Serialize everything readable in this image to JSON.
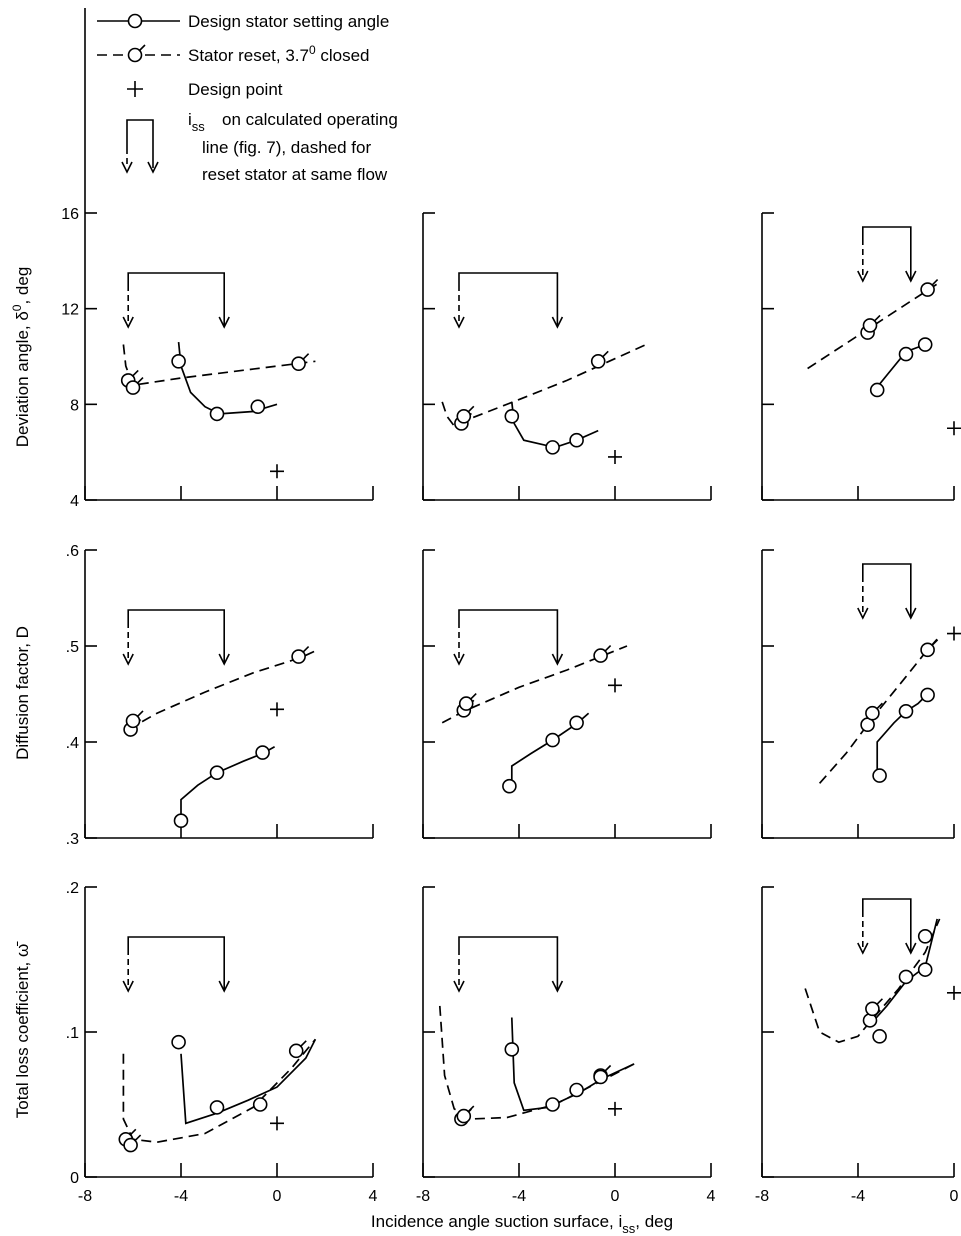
{
  "legend": {
    "design": "Design stator setting angle",
    "reset_main": "Stator reset, 3.7",
    "reset_sup": "0",
    "reset_tail": " closed",
    "design_point": "Design point",
    "iss_symbol": "i",
    "iss_sub": "ss",
    "iss_line1": "on calculated operating",
    "iss_line2": "line (fig. 7), dashed for",
    "iss_line3": "reset stator at same flow"
  },
  "labels": {
    "ylabel_dev_main": "Deviation angle, δ",
    "ylabel_dev_sup": "0",
    "ylabel_dev_tail": ", deg",
    "ylabel_diff": "Diffusion factor, D",
    "ylabel_loss": "Total loss coefficient, ω̄",
    "xlabel_main": "Incidence angle suction surface, i",
    "xlabel_sub": "ss",
    "xlabel_tail": ", deg"
  },
  "chart_data": {
    "type": "line",
    "styles": {
      "design": "solid line, open circles",
      "reset": "dashed line, flagged circles",
      "design_point": "plus marker"
    },
    "rows": [
      {
        "quantity": "Deviation angle",
        "ylim": [
          4,
          16
        ],
        "yticks": [
          "4",
          "8",
          "12",
          "16"
        ]
      },
      {
        "quantity": "Diffusion factor",
        "ylim": [
          0.3,
          0.6
        ],
        "yticks": [
          ".3",
          ".4",
          ".5",
          ".6"
        ]
      },
      {
        "quantity": "Total loss coefficient",
        "ylim": [
          0,
          0.2
        ],
        "yticks": [
          "0",
          ".1",
          ".2"
        ]
      }
    ],
    "columns": [
      {
        "xlim": [
          -8,
          4
        ],
        "xticks": [
          "-8",
          "-4",
          "0",
          "4"
        ]
      },
      {
        "xlim": [
          -8,
          4
        ],
        "xticks": [
          "-8",
          "-4",
          "0",
          "4"
        ]
      },
      {
        "xlim": [
          -8,
          0
        ],
        "xticks": [
          "-8",
          "-4",
          "0"
        ]
      }
    ],
    "panels": [
      {
        "row": 0,
        "col": 0,
        "design": {
          "line": [
            [
              -4.1,
              10.6
            ],
            [
              -4.0,
              9.6
            ],
            [
              -3.6,
              8.5
            ],
            [
              -3.0,
              7.9
            ],
            [
              -2.4,
              7.6
            ],
            [
              -1.0,
              7.7
            ],
            [
              0.0,
              8.0
            ]
          ],
          "points": [
            [
              -4.1,
              9.8
            ],
            [
              -2.5,
              7.6
            ],
            [
              -0.8,
              7.9
            ]
          ]
        },
        "reset": {
          "line": [
            [
              -6.4,
              10.5
            ],
            [
              -6.3,
              9.6
            ],
            [
              -6.0,
              8.8
            ],
            [
              -4.0,
              9.1
            ],
            [
              0.0,
              9.6
            ],
            [
              1.6,
              9.8
            ]
          ],
          "points": [
            [
              -6.2,
              9.0
            ],
            [
              -6.0,
              8.7
            ],
            [
              0.9,
              9.7
            ]
          ]
        },
        "arrows": [
          -6.2,
          -2.2
        ],
        "design_point": [
          0.0,
          5.2
        ]
      },
      {
        "row": 0,
        "col": 1,
        "design": {
          "line": [
            [
              -4.3,
              8.1
            ],
            [
              -4.2,
              7.2
            ],
            [
              -3.8,
              6.5
            ],
            [
              -2.5,
              6.2
            ],
            [
              -1.6,
              6.5
            ],
            [
              -0.7,
              6.9
            ]
          ],
          "points": [
            [
              -4.3,
              7.5
            ],
            [
              -2.6,
              6.2
            ],
            [
              -1.6,
              6.5
            ]
          ]
        },
        "reset": {
          "line": [
            [
              -7.2,
              8.1
            ],
            [
              -7.0,
              7.5
            ],
            [
              -6.7,
              7.1
            ],
            [
              -6.3,
              7.3
            ],
            [
              -4.0,
              8.2
            ],
            [
              -2.0,
              9.0
            ],
            [
              1.3,
              10.5
            ]
          ],
          "points": [
            [
              -6.4,
              7.2
            ],
            [
              -6.3,
              7.5
            ],
            [
              -0.7,
              9.8
            ]
          ]
        },
        "arrows": [
          -6.5,
          -2.4
        ],
        "design_point": [
          0.0,
          5.8
        ]
      },
      {
        "row": 0,
        "col": 2,
        "design": {
          "line": [
            [
              -3.3,
              8.6
            ],
            [
              -2.0,
              10.2
            ],
            [
              -1.2,
              10.5
            ]
          ],
          "points": [
            [
              -3.2,
              8.6
            ],
            [
              -2.0,
              10.1
            ],
            [
              -1.2,
              10.5
            ]
          ]
        },
        "reset": {
          "line": [
            [
              -6.1,
              9.5
            ],
            [
              -3.5,
              11.2
            ],
            [
              -0.6,
              13.1
            ]
          ],
          "points": [
            [
              -3.6,
              11.0
            ],
            [
              -3.5,
              11.3
            ],
            [
              -1.1,
              12.8
            ]
          ]
        },
        "arrows": [
          -3.8,
          -1.8
        ],
        "design_point": [
          0.0,
          7.0
        ]
      },
      {
        "row": 1,
        "col": 0,
        "design": {
          "line": [
            [
              -4.0,
              0.317
            ],
            [
              -4.0,
              0.34
            ],
            [
              -3.3,
              0.355
            ],
            [
              -2.5,
              0.368
            ],
            [
              -1.4,
              0.38
            ],
            [
              -0.6,
              0.388
            ],
            [
              -0.1,
              0.395
            ]
          ],
          "points": [
            [
              -4.0,
              0.318
            ],
            [
              -2.5,
              0.368
            ],
            [
              -0.6,
              0.389
            ]
          ]
        },
        "reset": {
          "line": [
            [
              -6.2,
              0.413
            ],
            [
              -5.0,
              0.43
            ],
            [
              -3.0,
              0.452
            ],
            [
              -1.0,
              0.472
            ],
            [
              1.0,
              0.488
            ],
            [
              1.7,
              0.496
            ]
          ],
          "points": [
            [
              -6.1,
              0.413
            ],
            [
              -6.0,
              0.422
            ],
            [
              0.9,
              0.489
            ]
          ]
        },
        "arrows": [
          -6.2,
          -2.2
        ],
        "design_point": [
          0.0,
          0.434
        ]
      },
      {
        "row": 1,
        "col": 1,
        "design": {
          "line": [
            [
              -4.3,
              0.355
            ],
            [
              -4.3,
              0.375
            ],
            [
              -3.5,
              0.388
            ],
            [
              -2.6,
              0.402
            ],
            [
              -1.6,
              0.419
            ],
            [
              -1.1,
              0.43
            ]
          ],
          "points": [
            [
              -4.4,
              0.354
            ],
            [
              -2.6,
              0.402
            ],
            [
              -1.6,
              0.42
            ]
          ]
        },
        "reset": {
          "line": [
            [
              -7.2,
              0.42
            ],
            [
              -6.3,
              0.432
            ],
            [
              -4.0,
              0.457
            ],
            [
              -2.0,
              0.475
            ],
            [
              -0.5,
              0.49
            ],
            [
              0.5,
              0.5
            ]
          ],
          "points": [
            [
              -6.3,
              0.433
            ],
            [
              -6.2,
              0.44
            ],
            [
              -0.6,
              0.49
            ]
          ]
        },
        "arrows": [
          -6.5,
          -2.4
        ],
        "design_point": [
          0.0,
          0.459
        ]
      },
      {
        "row": 1,
        "col": 2,
        "design": {
          "line": [
            [
              -3.2,
              0.363
            ],
            [
              -3.2,
              0.4
            ],
            [
              -2.5,
              0.42
            ],
            [
              -2.0,
              0.432
            ],
            [
              -1.5,
              0.44
            ],
            [
              -1.1,
              0.45
            ]
          ],
          "points": [
            [
              -3.1,
              0.365
            ],
            [
              -2.0,
              0.432
            ],
            [
              -1.1,
              0.449
            ]
          ]
        },
        "reset": {
          "line": [
            [
              -5.6,
              0.357
            ],
            [
              -4.5,
              0.388
            ],
            [
              -3.3,
              0.428
            ],
            [
              -2.0,
              0.468
            ],
            [
              -1.2,
              0.493
            ],
            [
              -0.6,
              0.51
            ]
          ],
          "points": [
            [
              -3.6,
              0.418
            ],
            [
              -3.4,
              0.43
            ],
            [
              -1.1,
              0.496
            ]
          ]
        },
        "arrows": [
          -3.8,
          -1.8
        ],
        "design_point": [
          0.0,
          0.513
        ]
      },
      {
        "row": 2,
        "col": 0,
        "design": {
          "line": [
            [
              -4.0,
              0.085
            ],
            [
              -3.8,
              0.037
            ],
            [
              -2.5,
              0.044
            ],
            [
              -1.2,
              0.053
            ],
            [
              0.0,
              0.062
            ],
            [
              1.2,
              0.082
            ],
            [
              1.6,
              0.095
            ]
          ],
          "points": [
            [
              -4.1,
              0.093
            ],
            [
              -2.5,
              0.048
            ],
            [
              -0.7,
              0.05
            ]
          ]
        },
        "reset": {
          "line": [
            [
              -6.4,
              0.085
            ],
            [
              -6.4,
              0.04
            ],
            [
              -6.0,
              0.026
            ],
            [
              -5.0,
              0.024
            ],
            [
              -3.0,
              0.03
            ],
            [
              -1.0,
              0.048
            ],
            [
              0.6,
              0.075
            ],
            [
              1.6,
              0.095
            ]
          ],
          "points": [
            [
              -6.3,
              0.026
            ],
            [
              -6.1,
              0.022
            ],
            [
              0.8,
              0.087
            ]
          ]
        },
        "arrows": [
          -6.2,
          -2.2
        ],
        "design_point": [
          0.0,
          0.037
        ]
      },
      {
        "row": 2,
        "col": 1,
        "design": {
          "line": [
            [
              -4.3,
              0.11
            ],
            [
              -4.2,
              0.065
            ],
            [
              -3.8,
              0.046
            ],
            [
              -2.8,
              0.048
            ],
            [
              -1.5,
              0.058
            ],
            [
              -0.5,
              0.068
            ],
            [
              0.8,
              0.078
            ]
          ],
          "points": [
            [
              -4.3,
              0.088
            ],
            [
              -2.6,
              0.05
            ],
            [
              -1.6,
              0.06
            ],
            [
              -0.6,
              0.069
            ]
          ]
        },
        "reset": {
          "line": [
            [
              -7.3,
              0.118
            ],
            [
              -7.1,
              0.07
            ],
            [
              -6.7,
              0.047
            ],
            [
              -6.0,
              0.04
            ],
            [
              -4.5,
              0.041
            ],
            [
              -2.5,
              0.05
            ],
            [
              -0.6,
              0.066
            ],
            [
              0.8,
              0.078
            ]
          ],
          "points": [
            [
              -6.4,
              0.04
            ],
            [
              -6.3,
              0.042
            ],
            [
              -0.6,
              0.07
            ]
          ]
        },
        "arrows": [
          -6.5,
          -2.4
        ],
        "design_point": [
          0.0,
          0.047
        ]
      },
      {
        "row": 2,
        "col": 2,
        "design": {
          "line": [
            [
              -3.5,
              0.12
            ],
            [
              -3.5,
              0.105
            ],
            [
              -2.8,
              0.118
            ],
            [
              -2.0,
              0.135
            ],
            [
              -1.2,
              0.145
            ],
            [
              -0.7,
              0.178
            ]
          ],
          "points": [
            [
              -3.1,
              0.097
            ],
            [
              -2.0,
              0.138
            ],
            [
              -1.2,
              0.143
            ],
            [
              -1.2,
              0.166
            ]
          ]
        },
        "reset": {
          "line": [
            [
              -6.2,
              0.13
            ],
            [
              -5.6,
              0.1
            ],
            [
              -4.8,
              0.093
            ],
            [
              -4.0,
              0.097
            ],
            [
              -3.5,
              0.107
            ],
            [
              -2.3,
              0.13
            ],
            [
              -1.2,
              0.155
            ],
            [
              -0.6,
              0.178
            ]
          ],
          "points": [
            [
              -3.5,
              0.108
            ],
            [
              -3.4,
              0.116
            ]
          ]
        },
        "arrows": [
          -3.8,
          -1.8
        ],
        "design_point": [
          0.0,
          0.127
        ]
      }
    ]
  }
}
